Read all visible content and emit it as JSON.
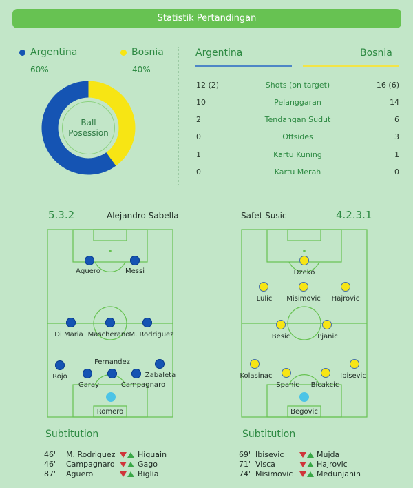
{
  "header": {
    "title": "Statistik Pertandingan"
  },
  "colors": {
    "argentina": "#1554b3",
    "bosnia": "#f7e514",
    "goalkeeper": "#4cc4e6",
    "accent": "#67c252",
    "text_green": "#2e8a43"
  },
  "possession": {
    "teams": [
      {
        "name": "Argentina",
        "percent_label": "60%",
        "value": 60
      },
      {
        "name": "Bosnia",
        "percent_label": "40%",
        "value": 40
      }
    ],
    "center_label_line1": "Ball",
    "center_label_line2": "Posession"
  },
  "stats": {
    "home": "Argentina",
    "away": "Bosnia",
    "rows": [
      {
        "left": "12 (2)",
        "label": "Shots (on target)",
        "right": "16 (6)"
      },
      {
        "left": "10",
        "label": "Pelanggaran",
        "right": "14"
      },
      {
        "left": "2",
        "label": "Tendangan Sudut",
        "right": "6"
      },
      {
        "left": "0",
        "label": "Offsides",
        "right": "3"
      },
      {
        "left": "1",
        "label": "Kartu Kuning",
        "right": "1"
      },
      {
        "left": "0",
        "label": "Kartu Merah",
        "right": "0"
      }
    ]
  },
  "lineups": {
    "argentina": {
      "formation": "5.3.2",
      "coach": "Alejandro Sabella",
      "players": [
        "Aguero",
        "Messi",
        "Di Maria",
        "Mascherano",
        "M. Rodriguez",
        "Rojo",
        "Fernandez",
        "Garay",
        "Campagnaro",
        "Zabaleta",
        "Romero"
      ]
    },
    "bosnia": {
      "formation": "4.2.3.1",
      "coach": "Safet Susic",
      "players": [
        "Dzeko",
        "Lulic",
        "Misimovic",
        "Hajrovic",
        "Besic",
        "Pjanic",
        "Kolasinac",
        "Spahic",
        "Bicakcic",
        "Ibisevic",
        "Begovic"
      ]
    }
  },
  "substitutions": {
    "title": "Subtitution",
    "argentina": [
      {
        "minute": "46'",
        "out": "M. Rodriguez",
        "in": "Higuain"
      },
      {
        "minute": "46'",
        "out": "Campagnaro",
        "in": "Gago"
      },
      {
        "minute": "87'",
        "out": "Aguero",
        "in": "Biglia"
      }
    ],
    "bosnia": [
      {
        "minute": "69'",
        "out": "Ibisevic",
        "in": "Mujda"
      },
      {
        "minute": "71'",
        "out": "Visca",
        "in": "Hajrovic"
      },
      {
        "minute": "74'",
        "out": "Misimovic",
        "in": "Medunjanin"
      }
    ]
  }
}
